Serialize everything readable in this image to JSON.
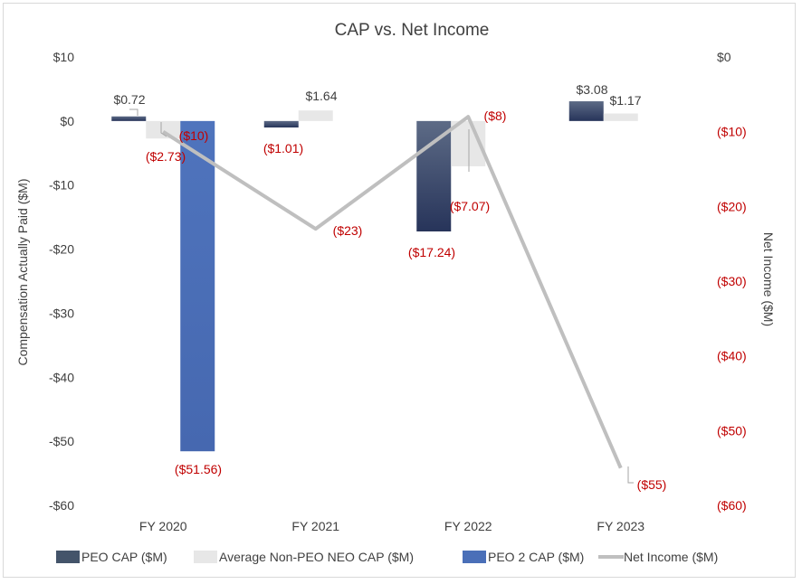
{
  "chart_data": {
    "type": "bar",
    "title": "CAP vs. Net Income",
    "categories": [
      "FY 2020",
      "FY 2021",
      "FY 2022",
      "FY 2023"
    ],
    "ylabel": "Compensation Actually Paid ($M)",
    "y2label": "Net Income ($M)",
    "ylim": [
      -60,
      10
    ],
    "y2lim": [
      -60,
      0
    ],
    "yticks": [
      10,
      0,
      -10,
      -20,
      -30,
      -40,
      -50,
      -60
    ],
    "ytick_labels": [
      "$10",
      "$0",
      "-$10",
      "-$20",
      "-$30",
      "-$40",
      "-$50",
      "-$60"
    ],
    "y2ticks": [
      0,
      -10,
      -20,
      -30,
      -40,
      -50,
      -60
    ],
    "y2tick_labels": [
      "$0",
      "($10)",
      "($20)",
      "($30)",
      "($40)",
      "($50)",
      "($60)"
    ],
    "series": [
      {
        "name": "PEO CAP ($M)",
        "type": "bar",
        "color": "#44546a",
        "values": [
          0.72,
          -1.01,
          -17.24,
          3.08
        ],
        "labels": [
          "$0.72",
          "($1.01)",
          "($17.24)",
          "$3.08"
        ]
      },
      {
        "name": "Average Non-PEO NEO CAP ($M)",
        "type": "bar",
        "color": "#e7e7e7",
        "values": [
          -2.73,
          1.64,
          -7.07,
          1.17
        ],
        "labels": [
          "($2.73)",
          "$1.64",
          "($7.07)",
          "$1.17"
        ]
      },
      {
        "name": "PEO 2 CAP ($M)",
        "type": "bar",
        "color": "#4a6fb8",
        "values": [
          -51.56,
          null,
          null,
          null
        ],
        "labels": [
          "($51.56)",
          null,
          null,
          null
        ]
      },
      {
        "name": "Net Income ($M)",
        "type": "line",
        "axis": "secondary",
        "color": "#bfbfbf",
        "values": [
          -10,
          -23,
          -8,
          -55
        ],
        "labels": [
          "($10)",
          "($23)",
          "($8)",
          "($55)"
        ]
      }
    ],
    "legend": "bottom"
  }
}
